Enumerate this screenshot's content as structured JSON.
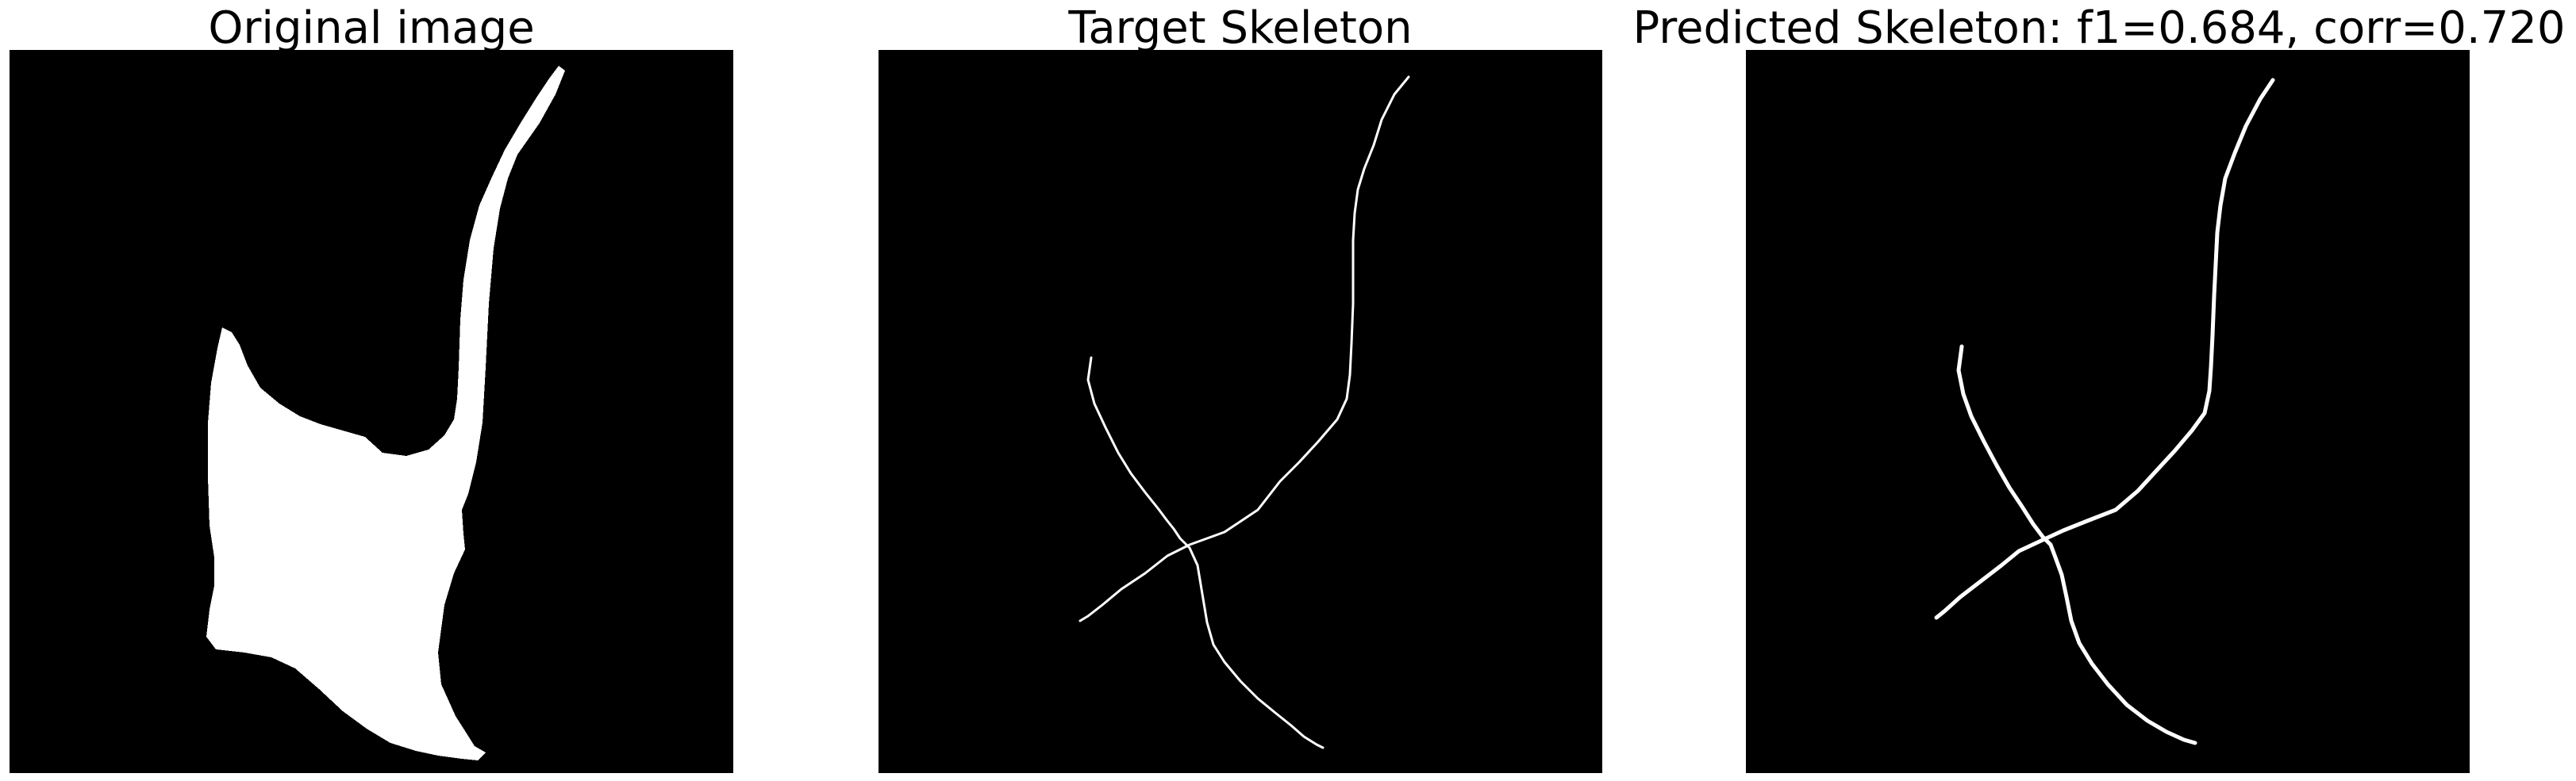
{
  "panels": [
    {
      "title": "Original image"
    },
    {
      "title": "Target Skeleton"
    },
    {
      "title": "Predicted Skeleton: f1=0.684, corr=0.720"
    }
  ],
  "colors": {
    "background": "#000000",
    "foreground": "#ffffff"
  }
}
